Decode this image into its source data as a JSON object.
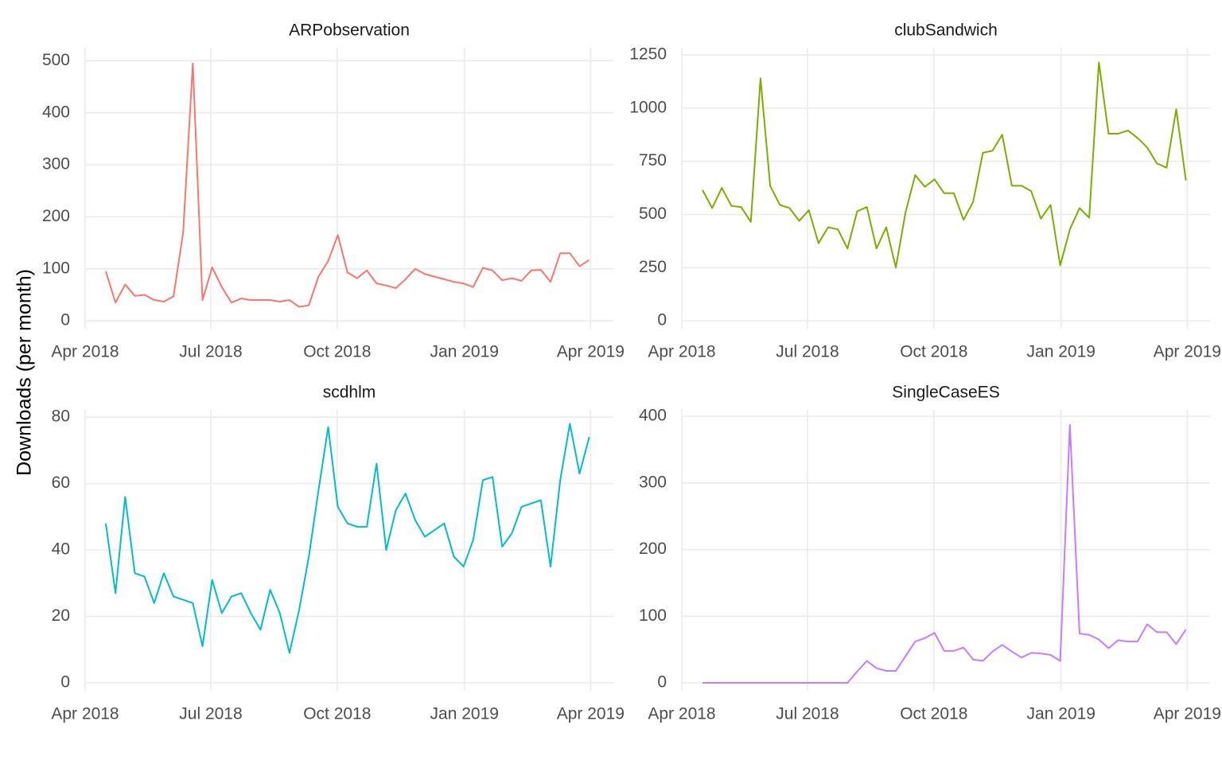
{
  "ylabel": "Downloads (per month)",
  "chart_data": [
    {
      "type": "line",
      "title": "ARPobservation",
      "categories": [
        null,
        null,
        null,
        null,
        null,
        null,
        null,
        null,
        null,
        null,
        null,
        null,
        null,
        null,
        null,
        null,
        null,
        null,
        null,
        null,
        null,
        null,
        null,
        null,
        null,
        null,
        null,
        null,
        null,
        null,
        null,
        null,
        null,
        null,
        null,
        null,
        null,
        null,
        null,
        null,
        null,
        null,
        null,
        null,
        null,
        null,
        null,
        null,
        null,
        null,
        null
      ],
      "series": [
        {
          "name": "ARPobservation",
          "color": "#F8766D",
          "values": [
            95,
            35,
            70,
            48,
            50,
            40,
            37,
            47,
            170,
            495,
            40,
            103,
            65,
            35,
            43,
            40,
            40,
            40,
            37,
            40,
            27,
            30,
            85,
            115,
            165,
            93,
            82,
            97,
            72,
            68,
            63,
            80,
            100,
            90,
            85,
            80,
            75,
            72,
            65,
            102,
            97,
            78,
            82,
            77,
            97,
            98,
            75,
            130,
            130,
            105,
            117
          ]
        }
      ],
      "xlim": [
        -2.14,
        52.5
      ],
      "xticks": [
        {
          "value": -2.14,
          "label": "Apr 2018"
        },
        {
          "value": 10.86,
          "label": "Jul 2018"
        },
        {
          "value": 23.93,
          "label": "Oct 2018"
        },
        {
          "value": 37.09,
          "label": "Jan 2019"
        },
        {
          "value": 50.14,
          "label": "Apr 2019"
        }
      ],
      "ylim": [
        -15,
        525
      ],
      "yticks": [
        0,
        100,
        200,
        300,
        400,
        500
      ],
      "grid": true
    },
    {
      "type": "line",
      "title": "clubSandwich",
      "categories": [
        null,
        null,
        null,
        null,
        null,
        null,
        null,
        null,
        null,
        null,
        null,
        null,
        null,
        null,
        null,
        null,
        null,
        null,
        null,
        null,
        null,
        null,
        null,
        null,
        null,
        null,
        null,
        null,
        null,
        null,
        null,
        null,
        null,
        null,
        null,
        null,
        null,
        null,
        null,
        null,
        null,
        null,
        null,
        null,
        null,
        null,
        null,
        null,
        null,
        null,
        null
      ],
      "series": [
        {
          "name": "clubSandwich",
          "color": "#7CAE00",
          "values": [
            615,
            530,
            625,
            540,
            535,
            465,
            1140,
            635,
            545,
            530,
            470,
            520,
            365,
            440,
            430,
            340,
            515,
            535,
            340,
            440,
            250,
            510,
            685,
            630,
            665,
            600,
            600,
            475,
            560,
            790,
            800,
            875,
            635,
            635,
            610,
            480,
            545,
            260,
            430,
            530,
            485,
            1215,
            880,
            880,
            895,
            860,
            815,
            740,
            720,
            995,
            660
          ]
        }
      ],
      "xlim": [
        -2.14,
        52.5
      ],
      "xticks": [
        {
          "value": -2.14,
          "label": "Apr 2018"
        },
        {
          "value": 10.86,
          "label": "Jul 2018"
        },
        {
          "value": 23.93,
          "label": "Oct 2018"
        },
        {
          "value": 37.09,
          "label": "Jan 2019"
        },
        {
          "value": 50.14,
          "label": "Apr 2019"
        }
      ],
      "ylim": [
        -37,
        1284
      ],
      "yticks": [
        0,
        250,
        500,
        750,
        1000,
        1250
      ],
      "grid": true
    },
    {
      "type": "line",
      "title": "scdhlm",
      "categories": [
        null,
        null,
        null,
        null,
        null,
        null,
        null,
        null,
        null,
        null,
        null,
        null,
        null,
        null,
        null,
        null,
        null,
        null,
        null,
        null,
        null,
        null,
        null,
        null,
        null,
        null,
        null,
        null,
        null,
        null,
        null,
        null,
        null,
        null,
        null,
        null,
        null,
        null,
        null,
        null,
        null,
        null,
        null,
        null,
        null,
        null,
        null,
        null,
        null,
        null,
        null
      ],
      "series": [
        {
          "name": "scdhlm",
          "color": "#00BFC4",
          "values": [
            48,
            27,
            56,
            33,
            32,
            24,
            33,
            26,
            25,
            24,
            11,
            31,
            21,
            26,
            27,
            21,
            16,
            28,
            21,
            9,
            22,
            38,
            58,
            77,
            53,
            48,
            47,
            47,
            66,
            40,
            52,
            57,
            49,
            44,
            46,
            48,
            38,
            35,
            43,
            61,
            62,
            41,
            45,
            53,
            54,
            55,
            35,
            61,
            78,
            63,
            74
          ]
        }
      ],
      "xlim": [
        -2.14,
        52.5
      ],
      "xticks": [
        {
          "value": -2.14,
          "label": "Apr 2018"
        },
        {
          "value": 10.86,
          "label": "Jul 2018"
        },
        {
          "value": 23.93,
          "label": "Oct 2018"
        },
        {
          "value": 37.09,
          "label": "Jan 2019"
        },
        {
          "value": 50.14,
          "label": "Apr 2019"
        }
      ],
      "ylim": [
        -2.4,
        82.2
      ],
      "yticks": [
        0,
        20,
        40,
        60,
        80
      ],
      "grid": true
    },
    {
      "type": "line",
      "title": "SingleCaseES",
      "categories": [
        null,
        null,
        null,
        null,
        null,
        null,
        null,
        null,
        null,
        null,
        null,
        null,
        null,
        null,
        null,
        null,
        null,
        null,
        null,
        null,
        null,
        null,
        null,
        null,
        null,
        null,
        null,
        null,
        null,
        null,
        null,
        null,
        null,
        null,
        null,
        null,
        null,
        null,
        null,
        null,
        null,
        null,
        null,
        null,
        null,
        null,
        null,
        null,
        null,
        null,
        null
      ],
      "series": [
        {
          "name": "SingleCaseES",
          "color": "#C77CFF",
          "values": [
            0,
            0,
            0,
            0,
            0,
            0,
            0,
            0,
            0,
            0,
            0,
            0,
            0,
            0,
            0,
            0,
            17,
            33,
            22,
            18,
            18,
            40,
            62,
            67,
            75,
            48,
            48,
            53,
            35,
            33,
            47,
            57,
            47,
            38,
            45,
            44,
            42,
            33,
            387,
            74,
            72,
            65,
            52,
            64,
            62,
            62,
            88,
            76,
            76,
            58,
            80
          ]
        }
      ],
      "xlim": [
        -2.14,
        52.5
      ],
      "xticks": [
        {
          "value": -2.14,
          "label": "Apr 2018"
        },
        {
          "value": 10.86,
          "label": "Jul 2018"
        },
        {
          "value": 23.93,
          "label": "Oct 2018"
        },
        {
          "value": 37.09,
          "label": "Jan 2019"
        },
        {
          "value": 50.14,
          "label": "Apr 2019"
        }
      ],
      "ylim": [
        -11.9,
        409.6
      ],
      "yticks": [
        0,
        100,
        200,
        300,
        400
      ],
      "grid": true
    }
  ]
}
